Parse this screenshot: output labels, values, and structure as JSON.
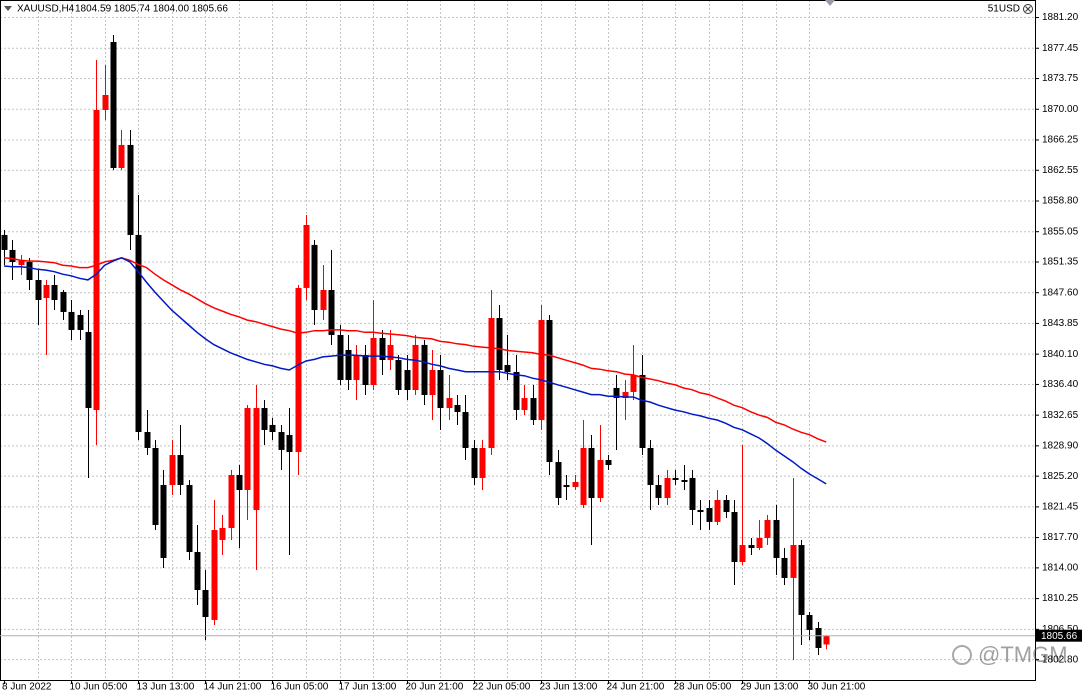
{
  "chart_data": {
    "type": "candlestick",
    "title": "XAUUSD,H4",
    "subtitle": "1804.59 1805.74 1804.00 1805.66",
    "account_label": "51USD",
    "watermark": "@TMGM",
    "up_color": "#ff0000",
    "down_color": "#000000",
    "grid": true,
    "current_price": {
      "value": 1805.66,
      "label": "1805.66"
    },
    "categories": [
      "8 Jun 2022",
      null,
      null,
      null,
      null,
      null,
      null,
      null,
      "10 Jun 05:00",
      null,
      null,
      null,
      null,
      null,
      null,
      null,
      "13 Jun 13:00",
      null,
      null,
      null,
      null,
      null,
      null,
      null,
      "14 Jun 21:00",
      null,
      null,
      null,
      null,
      null,
      null,
      null,
      "16 Jun 05:00",
      null,
      null,
      null,
      null,
      null,
      null,
      null,
      "17 Jun 13:00",
      null,
      null,
      null,
      null,
      null,
      null,
      null,
      "20 Jun 21:00",
      null,
      null,
      null,
      null,
      null,
      null,
      null,
      "22 Jun 05:00",
      null,
      null,
      null,
      null,
      null,
      null,
      null,
      "23 Jun 13:00",
      null,
      null,
      null,
      null,
      null,
      null,
      null,
      "24 Jun 21:00",
      null,
      null,
      null,
      null,
      null,
      null,
      null,
      "28 Jun 05:00",
      null,
      null,
      null,
      null,
      null,
      null,
      null,
      "29 Jun 13:00",
      null,
      null,
      null,
      null,
      null,
      null,
      null,
      "30 Jun 21:00",
      null,
      null
    ],
    "open": [
      1854.59,
      1852.76,
      1850.92,
      1851.29,
      1849.09,
      1846.89,
      1848.48,
      1847.63,
      1845.19,
      1844.82,
      1842.74,
      1833.22,
      1869.85,
      1878.15,
      1862.77,
      1865.58,
      1854.59,
      1830.53,
      1828.58,
      1824.06,
      1824.06,
      1827.72,
      1824.06,
      1815.88,
      1811.24,
      1807.58,
      1817.35,
      1818.81,
      1825.28,
      1823.45,
      1821.01,
      1833.46,
      1831.39,
      1830.53,
      1830.16,
      1828.09,
      1848.12,
      1853.37,
      1845.43,
      1847.87,
      1842.38,
      1840.55,
      1836.88,
      1839.93,
      1836.27,
      1842.01,
      1839.32,
      1839.32,
      1838.1,
      1835.66,
      1841.16,
      1835.05,
      1838.1,
      1833.46,
      1833.83,
      1832.97,
      1828.58,
      1824.92,
      1828.58,
      1844.45,
      1838.71,
      1837.86,
      1833.22,
      1834.68,
      1831.99,
      1844.21,
      1826.87,
      1824.06,
      1823.82,
      1821.62,
      1828.58,
      1822.47,
      1827.11,
      1835.91,
      1834.68,
      1835.42,
      1837.49,
      1828.58,
      1824.06,
      1822.47,
      1824.92,
      1824.67,
      1824.92,
      1821.01,
      1821.25,
      1819.55,
      1822.23,
      1820.76,
      1814.66,
      1816.73,
      1816.37,
      1817.59,
      1819.79,
      1815.15,
      1812.71,
      1816.73,
      1808.19,
      1806.6,
      1804.59
    ],
    "high": [
      1855.2,
      1853.98,
      1852.15,
      1851.78,
      1850.31,
      1849.09,
      1849.7,
      1847.87,
      1846.65,
      1845.43,
      1845.43,
      1875.95,
      1875.34,
      1879.01,
      1867.41,
      1867.41,
      1859.47,
      1833.22,
      1829.56,
      1825.89,
      1829.56,
      1831.39,
      1824.67,
      1819.18,
      1813.68,
      1822.23,
      1820.4,
      1825.89,
      1826.5,
      1833.83,
      1836.27,
      1834.44,
      1832.24,
      1831.39,
      1833.46,
      1848.48,
      1857.03,
      1853.98,
      1850.92,
      1852.76,
      1843.6,
      1842.38,
      1841.16,
      1841.16,
      1846.65,
      1842.99,
      1842.99,
      1839.93,
      1839.93,
      1842.38,
      1841.77,
      1840.55,
      1839.93,
      1837.49,
      1835.05,
      1835.05,
      1829.56,
      1829.56,
      1847.87,
      1846.04,
      1842.38,
      1839.93,
      1836.27,
      1836.27,
      1846.04,
      1844.82,
      1828.34,
      1825.28,
      1825.28,
      1831.99,
      1830.17,
      1831.39,
      1827.72,
      1837.49,
      1836.88,
      1841.16,
      1839.93,
      1829.56,
      1825.28,
      1825.89,
      1825.89,
      1826.5,
      1825.89,
      1822.23,
      1822.23,
      1823.45,
      1822.84,
      1822.23,
      1828.95,
      1817.59,
      1819.79,
      1820.4,
      1821.62,
      1816.37,
      1824.92,
      1817.35,
      1808.55,
      1807.33,
      1805.74
    ],
    "low": [
      1850.92,
      1849.09,
      1849.7,
      1847.87,
      1843.6,
      1839.93,
      1845.43,
      1844.21,
      1841.77,
      1841.77,
      1824.92,
      1828.95,
      1868.63,
      1862.52,
      1862.52,
      1852.76,
      1829.56,
      1827.72,
      1818.57,
      1813.93,
      1822.84,
      1822.84,
      1814.9,
      1809.41,
      1805.14,
      1806.97,
      1815.52,
      1817.35,
      1816.37,
      1819.79,
      1813.68,
      1828.95,
      1829.56,
      1825.89,
      1815.52,
      1825.28,
      1846.65,
      1843.6,
      1844.21,
      1841.16,
      1836.27,
      1835.66,
      1834.44,
      1835.05,
      1835.66,
      1837.49,
      1838.1,
      1835.05,
      1834.44,
      1835.05,
      1833.83,
      1831.99,
      1830.78,
      1831.99,
      1831.39,
      1827.11,
      1824.06,
      1823.45,
      1827.72,
      1836.88,
      1836.88,
      1831.99,
      1832.61,
      1831.39,
      1830.78,
      1825.28,
      1821.62,
      1822.23,
      1823.45,
      1821.25,
      1816.73,
      1821.99,
      1825.89,
      1828.34,
      1831.99,
      1834.44,
      1827.72,
      1821.01,
      1821.62,
      1821.62,
      1824.06,
      1823.45,
      1819.18,
      1818.57,
      1818.57,
      1819.18,
      1820.03,
      1811.85,
      1814.29,
      1815.52,
      1816.12,
      1816.73,
      1813.07,
      1811.85,
      1802.69,
      1804.53,
      1805.14,
      1803.3,
      1804.0
    ],
    "close": [
      1852.76,
      1851.29,
      1851.53,
      1849.09,
      1846.65,
      1848.48,
      1846.65,
      1845.19,
      1842.99,
      1842.99,
      1833.46,
      1869.85,
      1871.68,
      1862.77,
      1865.58,
      1854.59,
      1830.53,
      1828.58,
      1819.18,
      1815.15,
      1827.72,
      1824.06,
      1815.88,
      1811.24,
      1807.94,
      1818.57,
      1818.81,
      1825.28,
      1823.45,
      1833.46,
      1833.46,
      1830.78,
      1830.53,
      1828.34,
      1828.09,
      1848.12,
      1855.81,
      1845.43,
      1847.87,
      1842.38,
      1836.88,
      1836.88,
      1839.93,
      1836.27,
      1842.01,
      1839.32,
      1841.16,
      1835.66,
      1835.66,
      1841.16,
      1835.05,
      1838.1,
      1833.46,
      1834.68,
      1832.97,
      1828.58,
      1824.92,
      1828.58,
      1844.45,
      1838.1,
      1837.86,
      1833.22,
      1834.68,
      1831.99,
      1844.21,
      1826.87,
      1822.47,
      1823.82,
      1824.43,
      1828.58,
      1822.47,
      1827.11,
      1826.5,
      1834.68,
      1835.42,
      1837.49,
      1828.58,
      1824.06,
      1822.47,
      1824.92,
      1824.67,
      1824.43,
      1821.01,
      1820.76,
      1819.55,
      1822.23,
      1820.76,
      1814.66,
      1816.73,
      1816.37,
      1817.59,
      1819.79,
      1815.15,
      1812.71,
      1816.73,
      1808.19,
      1806.36,
      1804.16,
      1805.66
    ],
    "lines": [
      {
        "color": "#ff0000",
        "values": [
          1851.8,
          1851.7,
          1851.5,
          1851.4,
          1851.4,
          1851.3,
          1851.2,
          1850.9,
          1850.8,
          1850.6,
          1850.6,
          1850.9,
          1851.3,
          1851.5,
          1851.8,
          1851.5,
          1851.0,
          1850.6,
          1849.8,
          1849.1,
          1848.5,
          1847.9,
          1847.4,
          1846.8,
          1846.2,
          1845.7,
          1845.3,
          1844.9,
          1844.6,
          1844.2,
          1844.0,
          1843.7,
          1843.4,
          1843.1,
          1842.9,
          1842.6,
          1842.7,
          1842.9,
          1842.9,
          1843.0,
          1843.0,
          1842.9,
          1842.9,
          1842.7,
          1842.7,
          1842.6,
          1842.5,
          1842.4,
          1842.3,
          1842.1,
          1842.0,
          1841.9,
          1841.6,
          1841.5,
          1841.3,
          1841.2,
          1841.0,
          1840.9,
          1840.8,
          1840.7,
          1840.5,
          1840.4,
          1840.3,
          1840.2,
          1840.0,
          1839.9,
          1839.6,
          1839.3,
          1839.0,
          1838.7,
          1838.3,
          1838.2,
          1838.0,
          1837.9,
          1837.6,
          1837.5,
          1837.2,
          1837.0,
          1836.8,
          1836.5,
          1836.3,
          1835.9,
          1835.7,
          1835.3,
          1835.1,
          1834.7,
          1834.3,
          1833.8,
          1833.5,
          1833.0,
          1832.6,
          1832.3,
          1831.7,
          1831.4,
          1830.9,
          1830.5,
          1830.2,
          1829.7,
          1829.3
        ]
      },
      {
        "color": "#0018c8",
        "values": [
          1850.8,
          1850.7,
          1850.7,
          1850.6,
          1850.4,
          1850.3,
          1850.1,
          1849.8,
          1849.6,
          1849.3,
          1849.1,
          1849.8,
          1850.9,
          1851.4,
          1851.8,
          1851.3,
          1850.1,
          1848.8,
          1847.6,
          1846.5,
          1845.4,
          1844.5,
          1843.6,
          1842.7,
          1841.9,
          1841.2,
          1840.7,
          1840.2,
          1839.8,
          1839.4,
          1839.1,
          1838.8,
          1838.6,
          1838.3,
          1838.1,
          1838.7,
          1839.2,
          1839.4,
          1839.7,
          1839.8,
          1839.9,
          1839.9,
          1839.9,
          1839.8,
          1839.8,
          1839.8,
          1839.7,
          1839.6,
          1839.4,
          1839.3,
          1839.1,
          1838.8,
          1838.6,
          1838.3,
          1838.1,
          1837.9,
          1837.9,
          1837.9,
          1837.9,
          1837.9,
          1837.7,
          1837.5,
          1837.4,
          1837.1,
          1836.9,
          1836.6,
          1836.3,
          1836.0,
          1835.7,
          1835.4,
          1835.1,
          1835.1,
          1834.9,
          1834.9,
          1834.8,
          1834.8,
          1834.4,
          1834.2,
          1833.8,
          1833.5,
          1833.2,
          1833.0,
          1832.7,
          1832.5,
          1832.2,
          1832.0,
          1831.6,
          1831.1,
          1830.8,
          1830.3,
          1829.8,
          1829.1,
          1828.3,
          1827.6,
          1826.9,
          1826.1,
          1825.4,
          1824.8,
          1824.2
        ]
      }
    ],
    "ylim": [
      1800.25,
      1883.28
    ],
    "yticks": [
      {
        "value": 1881.2,
        "label": "1881.20"
      },
      1877.45,
      1873.75,
      {
        "value": 1870,
        "label": "1870.00"
      },
      1866.25,
      1862.55,
      {
        "value": 1858.8,
        "label": "1858.80"
      },
      1855.05,
      1851.35,
      {
        "value": 1847.6,
        "label": "1847.60"
      },
      1843.85,
      {
        "value": 1840.1,
        "label": "1840.10"
      },
      {
        "value": 1836.4,
        "label": "1836.40"
      },
      1832.65,
      {
        "value": 1828.9,
        "label": "1828.90"
      },
      {
        "value": 1825.2,
        "label": "1825.20"
      },
      1821.45,
      {
        "value": 1817.7,
        "label": "1817.70"
      },
      {
        "value": 1814,
        "label": "1814.00"
      },
      1810.25,
      {
        "value": 1806.5,
        "label": "1806.50"
      },
      {
        "value": 1802.8,
        "label": "1802.80"
      }
    ]
  }
}
